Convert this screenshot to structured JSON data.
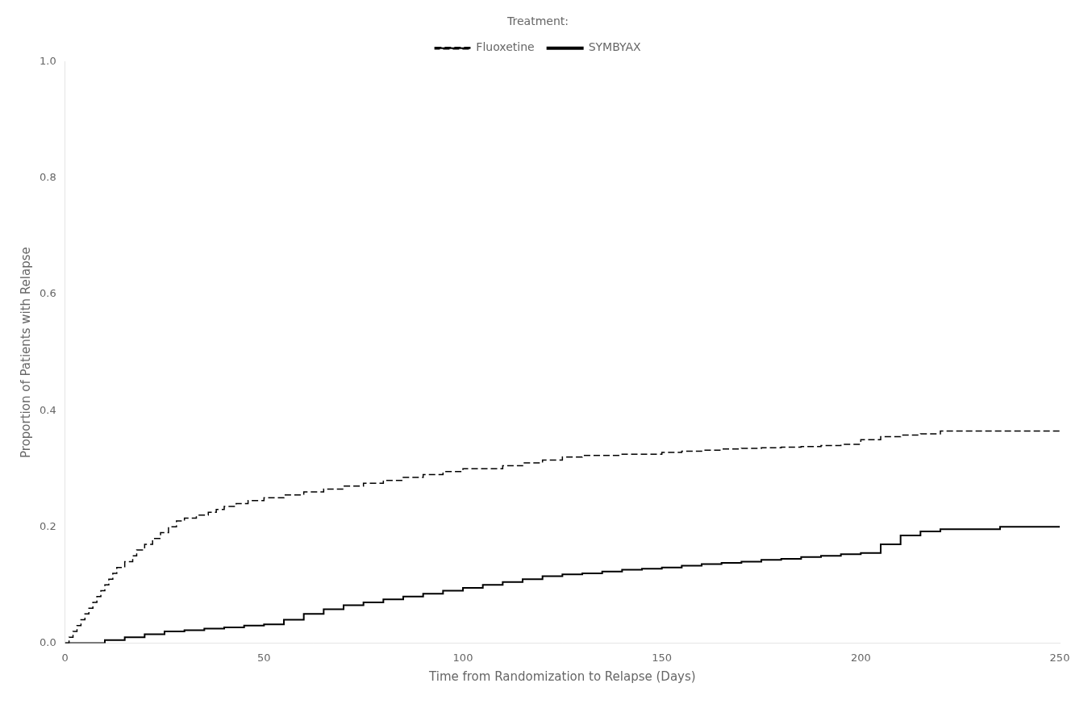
{
  "chart_data": {
    "type": "step",
    "xlabel": "Time from Randomization to Relapse (Days)",
    "ylabel": "Proportion of Patients with Relapse",
    "xlim": [
      0,
      250
    ],
    "ylim": [
      0.0,
      1.0
    ],
    "xticks": [
      0,
      50,
      100,
      150,
      200,
      250
    ],
    "yticks": [
      {
        "value": 0.0,
        "label": "0.0"
      },
      0.2,
      0.4,
      0.6,
      0.8,
      {
        "value": 1.0,
        "label": "1.0"
      }
    ],
    "grid": false,
    "legend": "top",
    "legend_title": "Treatment:",
    "series": [
      {
        "name": "Fluoxetine",
        "color": "#000000",
        "line_style": "dashed",
        "x": [
          0,
          1,
          2,
          3,
          4,
          5,
          6,
          7,
          8,
          9,
          10,
          11,
          12,
          13,
          15,
          17,
          18,
          20,
          22,
          24,
          26,
          28,
          30,
          33,
          36,
          38,
          40,
          43,
          46,
          50,
          55,
          60,
          65,
          70,
          75,
          80,
          85,
          90,
          95,
          100,
          110,
          115,
          120,
          125,
          130,
          140,
          150,
          155,
          160,
          165,
          170,
          175,
          180,
          185,
          190,
          195,
          200,
          205,
          210,
          215,
          220,
          235,
          250
        ],
        "values": [
          0.0,
          0.01,
          0.02,
          0.03,
          0.04,
          0.05,
          0.06,
          0.07,
          0.08,
          0.09,
          0.1,
          0.11,
          0.12,
          0.13,
          0.14,
          0.15,
          0.16,
          0.17,
          0.18,
          0.19,
          0.2,
          0.21,
          0.215,
          0.22,
          0.225,
          0.23,
          0.235,
          0.24,
          0.245,
          0.25,
          0.255,
          0.26,
          0.265,
          0.27,
          0.275,
          0.28,
          0.285,
          0.29,
          0.295,
          0.3,
          0.305,
          0.31,
          0.315,
          0.32,
          0.323,
          0.325,
          0.328,
          0.33,
          0.332,
          0.334,
          0.335,
          0.336,
          0.337,
          0.338,
          0.34,
          0.342,
          0.35,
          0.355,
          0.358,
          0.36,
          0.365,
          0.365,
          0.365
        ]
      },
      {
        "name": "SYMBYAX",
        "color": "#000000",
        "line_style": "solid",
        "x": [
          0,
          5,
          10,
          15,
          20,
          25,
          30,
          35,
          40,
          45,
          50,
          55,
          60,
          65,
          70,
          75,
          80,
          85,
          90,
          95,
          100,
          105,
          110,
          115,
          120,
          125,
          130,
          135,
          140,
          145,
          150,
          155,
          160,
          165,
          170,
          175,
          180,
          185,
          190,
          195,
          200,
          205,
          210,
          215,
          220,
          235,
          250
        ],
        "values": [
          0.0,
          0.0,
          0.005,
          0.01,
          0.015,
          0.02,
          0.022,
          0.025,
          0.027,
          0.03,
          0.032,
          0.04,
          0.05,
          0.058,
          0.065,
          0.07,
          0.075,
          0.08,
          0.085,
          0.09,
          0.095,
          0.1,
          0.105,
          0.11,
          0.115,
          0.118,
          0.12,
          0.123,
          0.126,
          0.128,
          0.13,
          0.133,
          0.136,
          0.138,
          0.14,
          0.143,
          0.145,
          0.148,
          0.15,
          0.153,
          0.155,
          0.17,
          0.185,
          0.192,
          0.196,
          0.2,
          0.2
        ]
      }
    ]
  }
}
